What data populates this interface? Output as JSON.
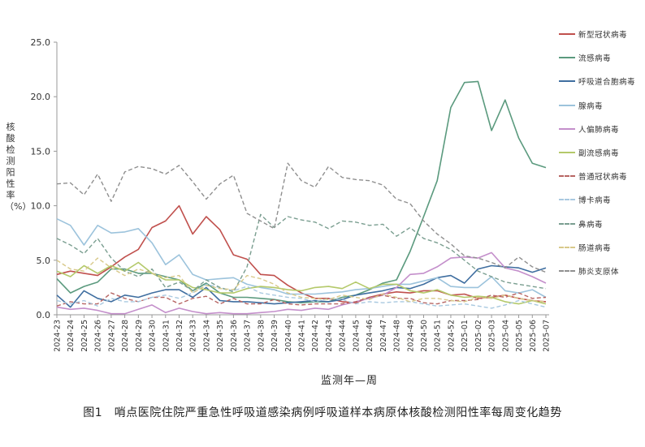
{
  "caption": "图1　哨点医院住院严重急性呼吸道感染病例呼吸道样本病原体核酸检测阳性率每周变化趋势",
  "chart_data": {
    "type": "line",
    "title": "",
    "xlabel": "监测年—周",
    "ylabel": "核酸检测阳性率（%）",
    "ylim": [
      0,
      25
    ],
    "yticks": [
      "0.0",
      "5.0",
      "10.0",
      "15.0",
      "20.0",
      "25.0"
    ],
    "grid": false,
    "legend": "right",
    "x": [
      "2024-23",
      "2024-24",
      "2024-25",
      "2024-26",
      "2024-27",
      "2024-28",
      "2024-29",
      "2024-30",
      "2024-31",
      "2024-32",
      "2024-33",
      "2024-34",
      "2024-35",
      "2024-36",
      "2024-37",
      "2024-38",
      "2024-39",
      "2024-40",
      "2024-41",
      "2024-42",
      "2024-43",
      "2024-44",
      "2024-45",
      "2024-46",
      "2024-47",
      "2024-48",
      "2024-49",
      "2024-50",
      "2024-51",
      "2024-52",
      "2025-01",
      "2025-02",
      "2025-03",
      "2025-04",
      "2025-05",
      "2025-06",
      "2025-07"
    ],
    "xtick_labels": [
      "2024-23",
      "2024-24",
      "2024-25",
      "2024-26",
      "2024-27",
      "2024-28",
      "2024-29",
      "2024-30",
      "2024-31",
      "2024-32",
      "2024-33",
      "2024-34",
      "2024-35",
      "2024-36",
      "2024-37",
      "2024-38",
      "2024-39",
      "2024-40",
      "2024-41",
      "2024-42",
      "2024-43",
      "2024-44",
      "2024-45",
      "2024-46",
      "2024-47",
      "2024-48",
      "2024-49",
      "2024-50",
      "2024-51",
      "2024-52",
      "2025-01",
      "2025-02",
      "2025-03",
      "2025-04",
      "2025-05",
      "2025-06",
      "2025-07"
    ],
    "series": [
      {
        "name": "新型冠状病毒",
        "color": "#c0504d",
        "dash": false,
        "values": [
          3.7,
          4.0,
          3.8,
          3.6,
          4.4,
          5.3,
          6.0,
          8.0,
          8.6,
          10.0,
          7.4,
          9.0,
          7.8,
          5.5,
          5.1,
          3.7,
          3.6,
          2.7,
          2.0,
          1.5,
          1.5,
          1.2,
          1.1,
          1.6,
          1.9,
          2.1,
          2.0,
          2.2,
          2.2,
          1.8,
          1.9,
          1.5,
          1.6,
          1.8,
          1.5,
          1.3,
          1.2
        ]
      },
      {
        "name": "流感病毒",
        "color": "#5b9a7e",
        "dash": false,
        "values": [
          3.3,
          2.0,
          2.6,
          3.0,
          4.2,
          4.2,
          3.8,
          3.8,
          3.5,
          3.2,
          2.2,
          2.9,
          2.0,
          1.6,
          1.6,
          1.5,
          1.4,
          1.2,
          1.1,
          1.2,
          1.2,
          1.6,
          1.8,
          2.3,
          2.9,
          3.2,
          5.8,
          9.0,
          12.3,
          19.0,
          21.3,
          21.4,
          16.9,
          19.7,
          16.2,
          13.9,
          13.5
        ]
      },
      {
        "name": "呼吸道合胞病毒",
        "color": "#3f6ea0",
        "dash": false,
        "values": [
          1.8,
          0.7,
          2.2,
          1.5,
          1.2,
          1.8,
          1.6,
          2.0,
          2.3,
          2.3,
          1.6,
          2.5,
          1.3,
          1.2,
          1.2,
          1.1,
          1.0,
          1.1,
          1.2,
          1.3,
          1.2,
          1.4,
          1.8,
          2.0,
          2.2,
          2.5,
          2.4,
          2.8,
          3.4,
          3.6,
          2.9,
          4.2,
          4.5,
          4.4,
          4.3,
          3.9,
          4.3
        ]
      },
      {
        "name": "腺病毒",
        "color": "#9cc3dc",
        "dash": false,
        "values": [
          8.8,
          8.2,
          6.4,
          8.2,
          7.5,
          7.6,
          7.9,
          6.6,
          4.6,
          5.5,
          3.7,
          3.2,
          3.3,
          3.4,
          2.8,
          2.5,
          2.3,
          1.9,
          1.9,
          1.9,
          2.0,
          2.1,
          2.3,
          2.4,
          2.6,
          2.8,
          2.8,
          3.1,
          3.4,
          2.6,
          2.5,
          2.5,
          3.5,
          2.2,
          2.0,
          2.3,
          1.6
        ]
      },
      {
        "name": "人偏肺病毒",
        "color": "#c48fcb",
        "dash": false,
        "values": [
          0.7,
          0.5,
          0.6,
          0.4,
          0.1,
          0.1,
          0.5,
          0.9,
          0.2,
          0.6,
          0.3,
          0.1,
          0.2,
          0.1,
          0.1,
          0.2,
          0.3,
          0.5,
          0.4,
          0.6,
          0.5,
          0.9,
          1.2,
          1.5,
          1.8,
          2.5,
          3.7,
          3.8,
          4.4,
          5.2,
          5.3,
          5.2,
          5.7,
          4.3,
          4.0,
          3.5,
          2.9
        ]
      },
      {
        "name": "副流感病毒",
        "color": "#b4c96a",
        "dash": false,
        "values": [
          4.0,
          3.5,
          4.5,
          3.8,
          4.5,
          4.0,
          4.8,
          3.8,
          3.2,
          3.2,
          2.5,
          2.3,
          2.0,
          2.0,
          2.4,
          2.6,
          2.5,
          2.3,
          2.2,
          2.5,
          2.6,
          2.4,
          3.0,
          2.4,
          2.8,
          2.8,
          2.2,
          2.0,
          2.3,
          1.8,
          1.6,
          1.7,
          1.6,
          1.2,
          1.0,
          1.3,
          1.0
        ]
      },
      {
        "name": "普通冠状病毒",
        "color": "#b76563",
        "dash": true,
        "values": [
          0.8,
          1.2,
          1.0,
          1.0,
          2.0,
          1.5,
          1.2,
          1.6,
          1.6,
          1.0,
          1.5,
          1.7,
          1.0,
          1.5,
          1.0,
          1.0,
          1.4,
          1.0,
          0.9,
          1.0,
          1.0,
          1.0,
          1.2,
          1.6,
          1.8,
          1.5,
          1.5,
          1.1,
          1.0,
          1.3,
          1.3,
          1.4,
          1.8,
          1.6,
          2.0,
          1.5,
          1.6
        ]
      },
      {
        "name": "博卡病毒",
        "color": "#a9c9e0",
        "dash": true,
        "values": [
          1.3,
          1.0,
          1.3,
          0.8,
          1.5,
          1.2,
          1.2,
          1.6,
          1.8,
          1.5,
          2.0,
          2.8,
          2.5,
          2.2,
          2.6,
          2.0,
          1.8,
          1.6,
          1.5,
          1.2,
          1.5,
          1.4,
          1.0,
          1.2,
          1.1,
          1.2,
          1.2,
          1.0,
          0.8,
          0.9,
          1.0,
          0.8,
          0.6,
          0.9,
          1.3,
          1.0,
          0.7
        ]
      },
      {
        "name": "鼻病毒",
        "color": "#7a9e90",
        "dash": true,
        "values": [
          7.0,
          6.4,
          5.6,
          7.0,
          5.2,
          4.0,
          3.5,
          4.2,
          2.5,
          3.0,
          2.2,
          3.2,
          2.5,
          2.1,
          4.4,
          9.2,
          8.0,
          9.0,
          8.7,
          8.5,
          7.9,
          8.6,
          8.5,
          8.2,
          8.3,
          7.2,
          8.0,
          7.0,
          6.6,
          6.0,
          5.0,
          4.0,
          3.5,
          3.0,
          2.8,
          2.6,
          2.4
        ]
      },
      {
        "name": "肠道病毒",
        "color": "#d8c98a",
        "dash": true,
        "values": [
          5.0,
          4.2,
          4.0,
          5.2,
          4.3,
          3.6,
          4.2,
          3.8,
          3.4,
          3.6,
          2.0,
          2.7,
          2.4,
          2.3,
          3.6,
          3.3,
          2.8,
          2.0,
          1.6,
          1.5,
          1.4,
          1.8,
          1.6,
          1.4,
          1.9,
          1.6,
          1.2,
          1.5,
          1.5,
          1.3,
          1.2,
          1.6,
          1.5,
          1.8,
          1.5,
          1.3,
          1.2
        ]
      },
      {
        "name": "肺炎支原体",
        "color": "#8f8f8f",
        "dash": true,
        "values": [
          12.0,
          12.1,
          11.0,
          12.9,
          10.4,
          13.1,
          13.6,
          13.4,
          12.9,
          13.7,
          12.2,
          10.6,
          12.0,
          12.8,
          9.3,
          8.6,
          7.9,
          13.9,
          12.3,
          11.7,
          13.6,
          12.6,
          12.4,
          12.3,
          11.9,
          10.6,
          10.2,
          8.6,
          7.4,
          6.5,
          5.4,
          5.2,
          4.8,
          4.3,
          5.3,
          4.4,
          3.9
        ]
      }
    ]
  }
}
